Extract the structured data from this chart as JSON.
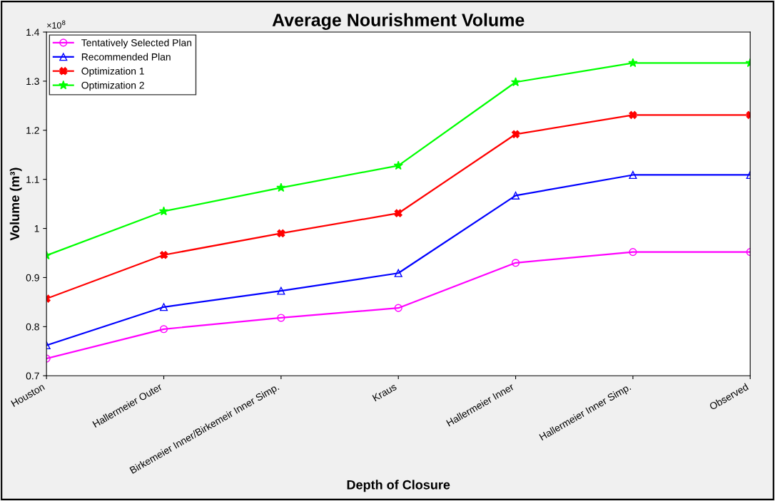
{
  "chart_data": {
    "type": "line",
    "title": "Average Nourishment Volume",
    "xlabel": "Depth of Closure",
    "ylabel": "Volume (m³)",
    "annotations": [
      "×10$^{8}$"
    ],
    "categories": [
      "Houston",
      "Hallermeier Outer",
      "Birkemeier Inner/Birkemeir Inner Simp.",
      "Kraus",
      "Hallermeier Inner",
      "Hallermeier Inner Simp.",
      "Observed"
    ],
    "series": [
      {
        "name": "Tentatively Selected Plan",
        "color": "#ff00ff",
        "marker": "circle",
        "values": [
          0.735,
          0.795,
          0.818,
          0.838,
          0.93,
          0.952,
          0.952
        ]
      },
      {
        "name": "Recommended Plan",
        "color": "#0000ff",
        "marker": "triangle",
        "values": [
          0.762,
          0.84,
          0.873,
          0.909,
          1.067,
          1.109,
          1.109
        ]
      },
      {
        "name": "Optimization 1",
        "color": "#ff0000",
        "marker": "cross",
        "values": [
          0.857,
          0.946,
          0.99,
          1.031,
          1.192,
          1.231,
          1.231
        ]
      },
      {
        "name": "Optimization 2",
        "color": "#00ff00",
        "marker": "star",
        "values": [
          0.945,
          1.035,
          1.083,
          1.128,
          1.298,
          1.337,
          1.337
        ]
      }
    ],
    "ylim": [
      0.7,
      1.4
    ],
    "yticks": [
      0.7,
      0.8,
      0.9,
      {
        "value": 1.0,
        "label": "1"
      },
      1.1,
      1.2,
      1.3,
      1.4
    ],
    "grid": false,
    "legend": "top left",
    "line_style": "solid"
  }
}
